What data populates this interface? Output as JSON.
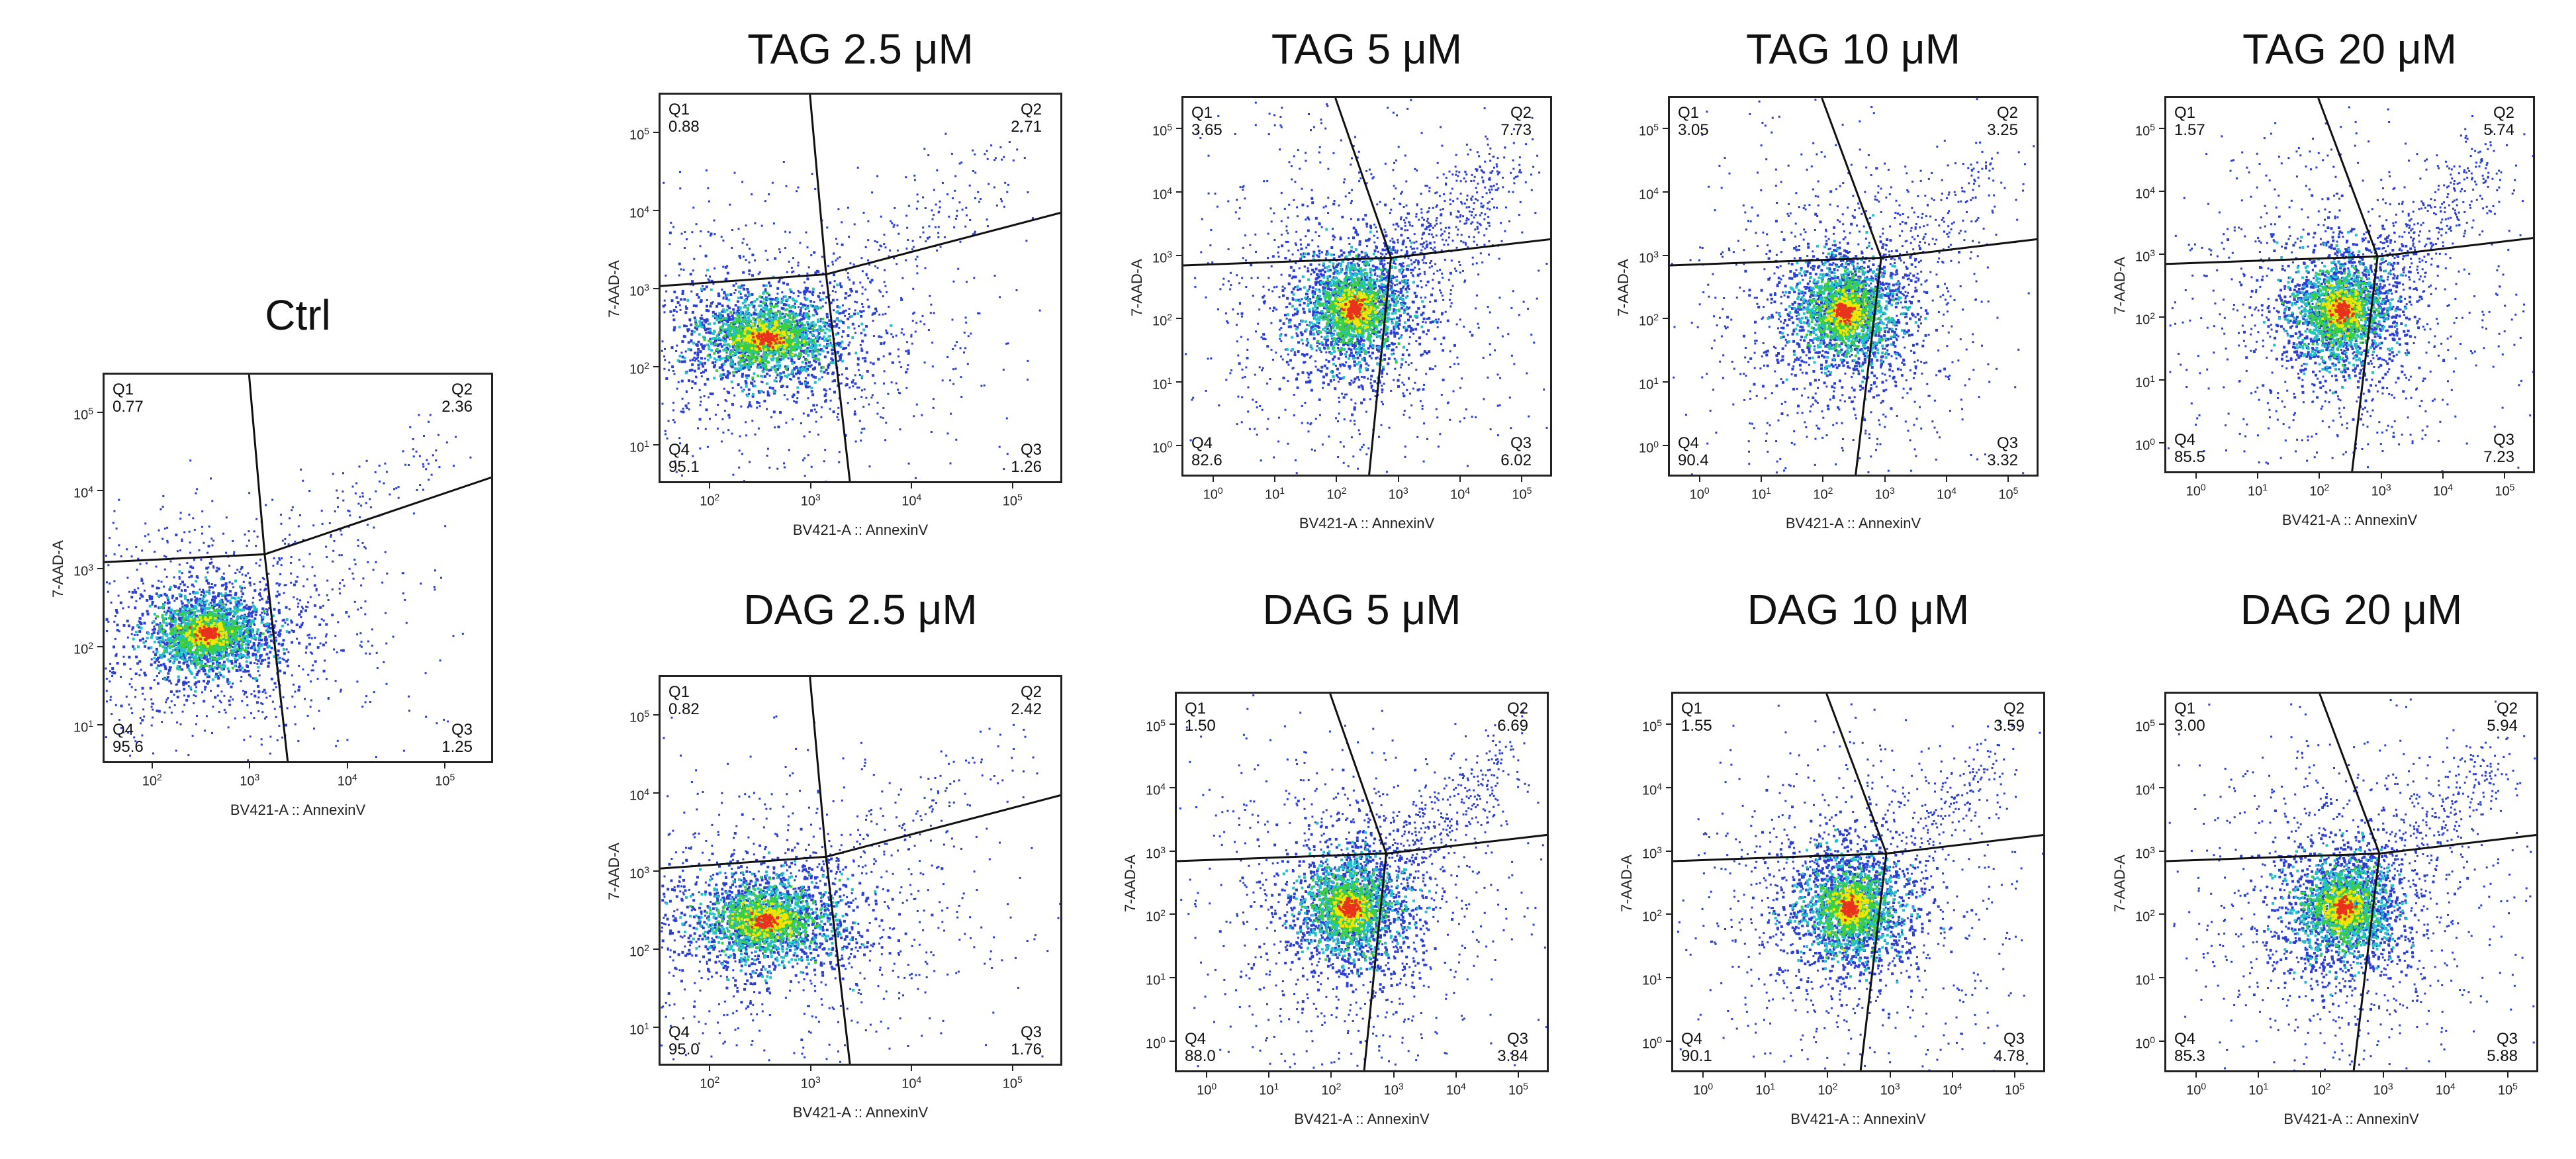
{
  "chart_data": [
    {
      "type": "scatter",
      "id": "ctrl",
      "title": "Ctrl",
      "xlabel": "BV421-A :: AnnexinV",
      "ylabel": "7-AAD-A",
      "x_scale": "log",
      "y_scale": "log",
      "xticks": [
        "10^2",
        "10^3",
        "10^4",
        "10^5"
      ],
      "yticks": [
        "10^1",
        "10^2",
        "10^3",
        "10^4",
        "10^5"
      ],
      "quadrants": [
        {
          "name": "Q1",
          "value": "0.77"
        },
        {
          "name": "Q2",
          "value": "2.36"
        },
        {
          "name": "Q3",
          "value": "1.25"
        },
        {
          "name": "Q4",
          "value": "95.6"
        }
      ]
    },
    {
      "type": "scatter",
      "id": "tag25",
      "title": "TAG 2.5 μM",
      "xlabel": "BV421-A :: AnnexinV",
      "ylabel": "7-AAD-A",
      "x_scale": "log",
      "y_scale": "log",
      "xticks": [
        "10^2",
        "10^3",
        "10^4",
        "10^5"
      ],
      "yticks": [
        "10^1",
        "10^2",
        "10^3",
        "10^4",
        "10^5"
      ],
      "quadrants": [
        {
          "name": "Q1",
          "value": "0.88"
        },
        {
          "name": "Q2",
          "value": "2.71"
        },
        {
          "name": "Q3",
          "value": "1.26"
        },
        {
          "name": "Q4",
          "value": "95.1"
        }
      ]
    },
    {
      "type": "scatter",
      "id": "tag5",
      "title": "TAG 5 μM",
      "xlabel": "BV421-A :: AnnexinV",
      "ylabel": "7-AAD-A",
      "x_scale": "log",
      "y_scale": "log",
      "xticks": [
        "10^0",
        "10^1",
        "10^2",
        "10^3",
        "10^4",
        "10^5"
      ],
      "yticks": [
        "10^0",
        "10^1",
        "10^2",
        "10^3",
        "10^4",
        "10^5"
      ],
      "quadrants": [
        {
          "name": "Q1",
          "value": "3.65"
        },
        {
          "name": "Q2",
          "value": "7.73"
        },
        {
          "name": "Q3",
          "value": "6.02"
        },
        {
          "name": "Q4",
          "value": "82.6"
        }
      ]
    },
    {
      "type": "scatter",
      "id": "tag10",
      "title": "TAG 10 μM",
      "xlabel": "BV421-A :: AnnexinV",
      "ylabel": "7-AAD-A",
      "x_scale": "log",
      "y_scale": "log",
      "xticks": [
        "10^0",
        "10^1",
        "10^2",
        "10^3",
        "10^4",
        "10^5"
      ],
      "yticks": [
        "10^0",
        "10^1",
        "10^2",
        "10^3",
        "10^4",
        "10^5"
      ],
      "quadrants": [
        {
          "name": "Q1",
          "value": "3.05"
        },
        {
          "name": "Q2",
          "value": "3.25"
        },
        {
          "name": "Q3",
          "value": "3.32"
        },
        {
          "name": "Q4",
          "value": "90.4"
        }
      ]
    },
    {
      "type": "scatter",
      "id": "tag20",
      "title": "TAG 20 μM",
      "xlabel": "BV421-A :: AnnexinV",
      "ylabel": "7-AAD-A",
      "x_scale": "log",
      "y_scale": "log",
      "xticks": [
        "10^0",
        "10^1",
        "10^2",
        "10^3",
        "10^4",
        "10^5"
      ],
      "yticks": [
        "10^0",
        "10^1",
        "10^2",
        "10^3",
        "10^4",
        "10^5"
      ],
      "quadrants": [
        {
          "name": "Q1",
          "value": "1.57"
        },
        {
          "name": "Q2",
          "value": "5.74"
        },
        {
          "name": "Q3",
          "value": "7.23"
        },
        {
          "name": "Q4",
          "value": "85.5"
        }
      ]
    },
    {
      "type": "scatter",
      "id": "dag25",
      "title": "DAG 2.5 μM",
      "xlabel": "BV421-A :: AnnexinV",
      "ylabel": "7-AAD-A",
      "x_scale": "log",
      "y_scale": "log",
      "xticks": [
        "10^2",
        "10^3",
        "10^4",
        "10^5"
      ],
      "yticks": [
        "10^1",
        "10^2",
        "10^3",
        "10^4",
        "10^5"
      ],
      "quadrants": [
        {
          "name": "Q1",
          "value": "0.82"
        },
        {
          "name": "Q2",
          "value": "2.42"
        },
        {
          "name": "Q3",
          "value": "1.76"
        },
        {
          "name": "Q4",
          "value": "95.0"
        }
      ]
    },
    {
      "type": "scatter",
      "id": "dag5",
      "title": "DAG 5 μM",
      "xlabel": "BV421-A :: AnnexinV",
      "ylabel": "7-AAD-A",
      "x_scale": "log",
      "y_scale": "log",
      "xticks": [
        "10^0",
        "10^1",
        "10^2",
        "10^3",
        "10^4",
        "10^5"
      ],
      "yticks": [
        "10^0",
        "10^1",
        "10^2",
        "10^3",
        "10^4",
        "10^5"
      ],
      "quadrants": [
        {
          "name": "Q1",
          "value": "1.50"
        },
        {
          "name": "Q2",
          "value": "6.69"
        },
        {
          "name": "Q3",
          "value": "3.84"
        },
        {
          "name": "Q4",
          "value": "88.0"
        }
      ]
    },
    {
      "type": "scatter",
      "id": "dag10",
      "title": "DAG 10 μM",
      "xlabel": "BV421-A :: AnnexinV",
      "ylabel": "7-AAD-A",
      "x_scale": "log",
      "y_scale": "log",
      "xticks": [
        "10^0",
        "10^1",
        "10^2",
        "10^3",
        "10^4",
        "10^5"
      ],
      "yticks": [
        "10^0",
        "10^1",
        "10^2",
        "10^3",
        "10^4",
        "10^5"
      ],
      "quadrants": [
        {
          "name": "Q1",
          "value": "1.55"
        },
        {
          "name": "Q2",
          "value": "3.59"
        },
        {
          "name": "Q3",
          "value": "4.78"
        },
        {
          "name": "Q4",
          "value": "90.1"
        }
      ]
    },
    {
      "type": "scatter",
      "id": "dag20",
      "title": "DAG 20 μM",
      "xlabel": "BV421-A :: AnnexinV",
      "ylabel": "7-AAD-A",
      "x_scale": "log",
      "y_scale": "log",
      "xticks": [
        "10^0",
        "10^1",
        "10^2",
        "10^3",
        "10^4",
        "10^5"
      ],
      "yticks": [
        "10^0",
        "10^1",
        "10^2",
        "10^3",
        "10^4",
        "10^5"
      ],
      "quadrants": [
        {
          "name": "Q1",
          "value": "3.00"
        },
        {
          "name": "Q2",
          "value": "5.94"
        },
        {
          "name": "Q3",
          "value": "5.88"
        },
        {
          "name": "Q4",
          "value": "85.3"
        }
      ]
    }
  ],
  "colors": {
    "sparse": "#2b3fd6",
    "dense_low": "#22c3c8",
    "dense_mid": "#3ccf3c",
    "dense_high": "#f2e600",
    "core": "#e8321e"
  }
}
